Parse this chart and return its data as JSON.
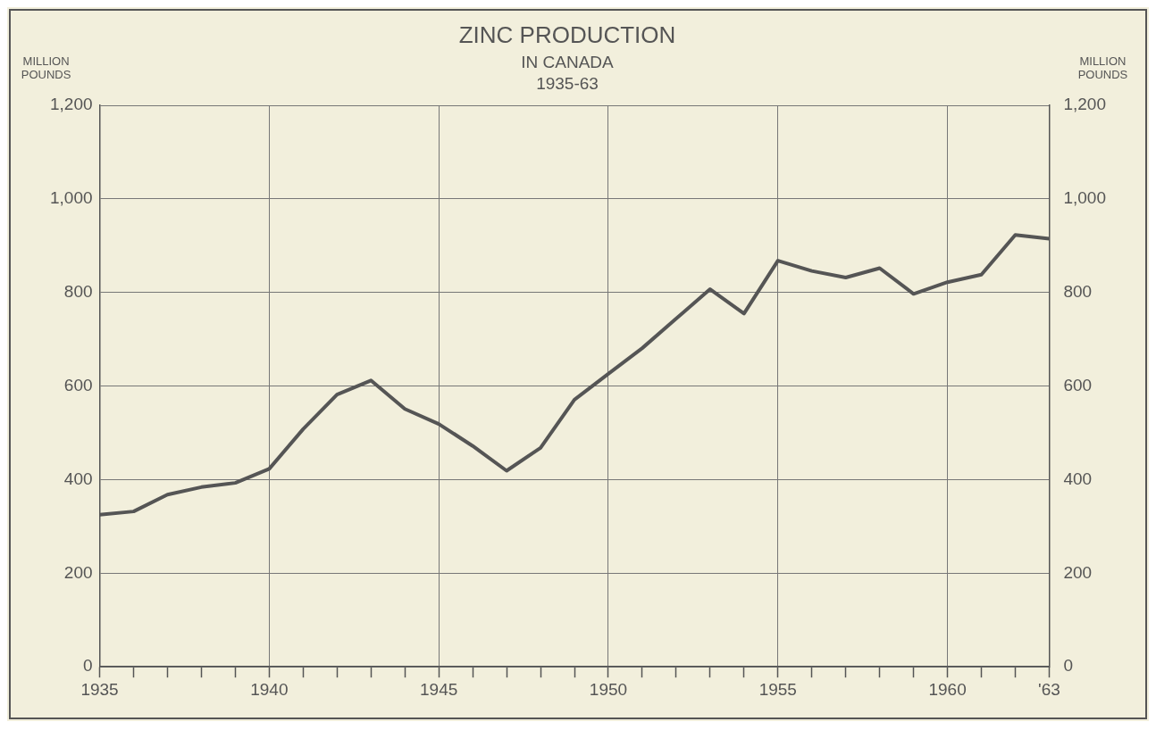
{
  "chart_data": {
    "type": "line",
    "title": "ZINC PRODUCTION",
    "subtitle": "IN CANADA\n1935-63",
    "ylabel": "MILLION\nPOUNDS",
    "y2label": "MILLION\nPOUNDS",
    "x": [
      1935,
      1936,
      1937,
      1938,
      1939,
      1940,
      1941,
      1942,
      1943,
      1944,
      1945,
      1946,
      1947,
      1948,
      1949,
      1950,
      1951,
      1952,
      1953,
      1954,
      1955,
      1956,
      1957,
      1958,
      1959,
      1960,
      1961,
      1962,
      1963
    ],
    "series": [
      {
        "color": "#555555",
        "values": [
          325,
          332,
          368,
          384,
          393,
          423,
          508,
          582,
          612,
          551,
          519,
          472,
          419,
          468,
          571,
          626,
          681,
          744,
          807,
          755,
          868,
          846,
          832,
          852,
          797,
          822,
          838,
          923,
          915
        ]
      }
    ],
    "xlim": [
      1935,
      1963
    ],
    "xticks": [
      1935,
      {
        "value": 1936,
        "label": null
      },
      {
        "value": 1937,
        "label": null
      },
      {
        "value": 1938,
        "label": null
      },
      {
        "value": 1939,
        "label": null
      },
      1940,
      {
        "value": 1941,
        "label": null
      },
      {
        "value": 1942,
        "label": null
      },
      {
        "value": 1943,
        "label": null
      },
      {
        "value": 1944,
        "label": null
      },
      1945,
      {
        "value": 1946,
        "label": null
      },
      {
        "value": 1947,
        "label": null
      },
      {
        "value": 1948,
        "label": null
      },
      {
        "value": 1949,
        "label": null
      },
      1950,
      {
        "value": 1951,
        "label": null
      },
      {
        "value": 1952,
        "label": null
      },
      {
        "value": 1953,
        "label": null
      },
      {
        "value": 1954,
        "label": null
      },
      1955,
      {
        "value": 1956,
        "label": null
      },
      {
        "value": 1957,
        "label": null
      },
      {
        "value": 1958,
        "label": null
      },
      {
        "value": 1959,
        "label": null
      },
      1960,
      {
        "value": 1961,
        "label": null
      },
      {
        "value": 1962,
        "label": null
      },
      {
        "value": 1963,
        "label": "'63"
      }
    ],
    "ylim": [
      0,
      1200
    ],
    "yticks": [
      0,
      200,
      400,
      600,
      800,
      {
        "value": 1000,
        "label": "1,000"
      },
      {
        "value": 1200,
        "label": "1,200"
      }
    ],
    "y2lim": [
      0,
      1200
    ],
    "y2ticks": [
      0,
      200,
      400,
      600,
      800,
      {
        "value": 1000,
        "label": "1,000"
      },
      {
        "value": 1200,
        "label": "1,200"
      }
    ],
    "grid": true,
    "legend": false,
    "marker": "none",
    "line_style": "solid"
  }
}
